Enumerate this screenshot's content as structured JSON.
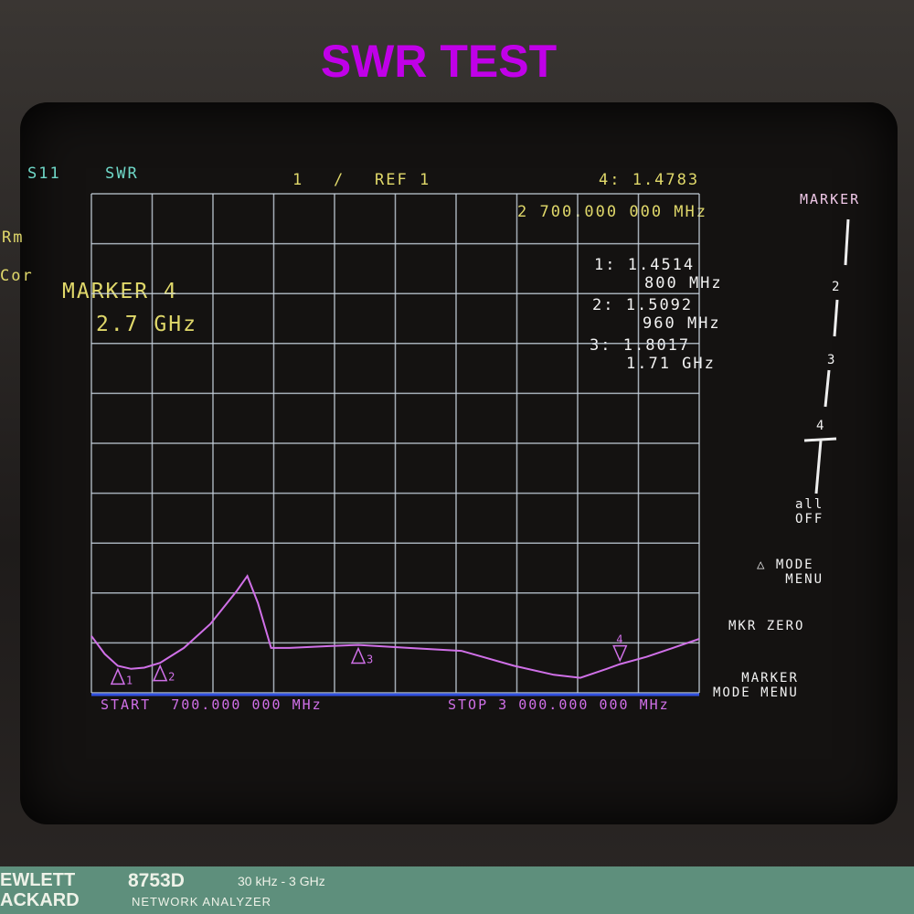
{
  "title": "SWR TEST",
  "header": {
    "channel": "S11",
    "format": "SWR",
    "scale": "1",
    "scale_unit": "/",
    "ref": "REF 1",
    "active_marker": "4: 1.4783",
    "active_freq": "2 700.000 000 MHz"
  },
  "left_labels": [
    "Rm",
    "Cor"
  ],
  "marker_note": {
    "line1": "MARKER 4",
    "line2": "2.7 GHz"
  },
  "marker_table": [
    {
      "id": "1",
      "value": "1.4514",
      "freq": "800 MHz"
    },
    {
      "id": "2",
      "value": "1.5092",
      "freq": "960 MHz"
    },
    {
      "id": "3",
      "value": "1.8017",
      "freq": "1.71 GHz"
    }
  ],
  "footer": {
    "start": "START  700.000 000 MHz",
    "stop": "STOP 3 000.000 000 MHz"
  },
  "softkeys": {
    "header": "MARKER",
    "m1": "1",
    "m2": "2",
    "m3": "3",
    "m4": "4",
    "all_off_1": "all",
    "all_off_2": "OFF",
    "mode_menu_1": "△ MODE",
    "mode_menu_2": "MENU",
    "mkr_zero": "MKR ZERO",
    "marker_mode_1": "MARKER",
    "marker_mode_2": "MODE MENU"
  },
  "brand": {
    "maker_1": "EWLETT",
    "maker_2": "ACKARD",
    "model": "8753D",
    "range": "30 kHz - 3 GHz",
    "type": "NETWORK ANALYZER"
  },
  "colors": {
    "trace": "#d070e8",
    "grid": "#c8d4e0",
    "title": "#c000e8"
  },
  "chart_data": {
    "type": "line",
    "xlabel": "",
    "ylabel": "",
    "xlim": [
      700,
      3000
    ],
    "ylim": [
      1,
      11
    ],
    "grid": true,
    "series": [
      {
        "x": [
          700,
          750,
          800,
          850,
          900,
          960,
          1050,
          1150,
          1250,
          1290,
          1330,
          1380,
          1450,
          1600,
          1710,
          1900,
          2100,
          2300,
          2450,
          2550,
          2650,
          2700,
          2800,
          2900,
          3000
        ],
        "y": [
          1.95,
          1.65,
          1.45,
          1.4,
          1.42,
          1.5,
          1.75,
          2.15,
          2.7,
          2.95,
          2.5,
          1.75,
          1.75,
          1.78,
          1.8,
          1.75,
          1.7,
          1.45,
          1.3,
          1.25,
          1.4,
          1.48,
          1.6,
          1.75,
          1.9
        ]
      }
    ],
    "markers": [
      {
        "id": "1",
        "x": 800,
        "y": 1.4514
      },
      {
        "id": "2",
        "x": 960,
        "y": 1.5092
      },
      {
        "id": "3",
        "x": 1710,
        "y": 1.8017
      },
      {
        "id": "4",
        "x": 2700,
        "y": 1.4783
      }
    ]
  }
}
